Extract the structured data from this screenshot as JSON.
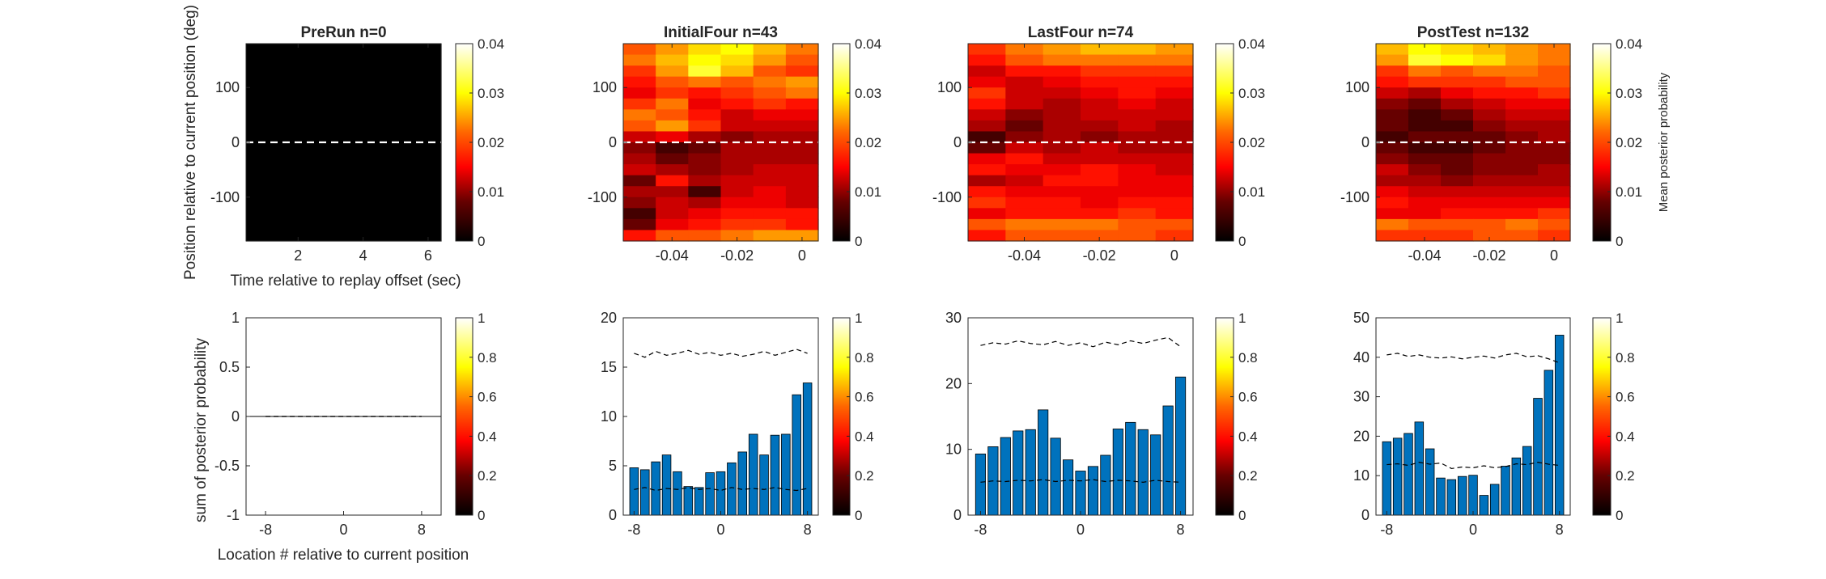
{
  "figure": {
    "ylabel_top": "Position relative to current position (deg)",
    "xlabel_top": "Time relative to replay offset (sec)",
    "ylabel_bottom": "sum of posterior probability",
    "xlabel_bottom": "Location # relative to current position",
    "colorbar_label": "Mean posterior probability"
  },
  "chart_data": [
    {
      "type": "heatmap",
      "panel": "top-1",
      "title": "PreRun n=0",
      "xlim": [
        0.4,
        6.4
      ],
      "ylim": [
        -180,
        180
      ],
      "xticks": [
        2,
        4,
        6
      ],
      "xticklabels": [
        "2",
        "4",
        "6"
      ],
      "yticks": [
        100,
        0,
        -100
      ],
      "yticklabels": [
        "100",
        "0",
        "-100"
      ],
      "clim": [
        0,
        0.04
      ],
      "colorbar_ticks": [
        0,
        0.01,
        0.02,
        0.03,
        0.04
      ],
      "colorbar_ticklabels": [
        "0",
        "0.01",
        "0.02",
        "0.03",
        "0.04"
      ],
      "reference_line_y": 0,
      "columns": 1,
      "rows": 1,
      "values": [
        [
          0
        ]
      ]
    },
    {
      "type": "heatmap",
      "panel": "top-2",
      "title": "InitialFour n=43",
      "xlim": [
        -0.055,
        0.005
      ],
      "ylim": [
        -180,
        180
      ],
      "xticks": [
        -0.04,
        -0.02,
        0
      ],
      "xticklabels": [
        "-0.04",
        "-0.02",
        "0"
      ],
      "yticks": [
        100,
        0,
        -100
      ],
      "yticklabels": [
        "100",
        "0",
        "-100"
      ],
      "clim": [
        0,
        0.04
      ],
      "colorbar_ticks": [
        0,
        0.01,
        0.02,
        0.03,
        0.04
      ],
      "colorbar_ticklabels": [
        "0",
        "0.01",
        "0.02",
        "0.03",
        "0.04"
      ],
      "reference_line_y": 0,
      "columns": 6,
      "rows": 18,
      "values": [
        [
          0.02,
          0.024,
          0.028,
          0.03,
          0.026,
          0.022
        ],
        [
          0.022,
          0.026,
          0.03,
          0.028,
          0.024,
          0.02
        ],
        [
          0.018,
          0.024,
          0.032,
          0.026,
          0.02,
          0.018
        ],
        [
          0.016,
          0.02,
          0.022,
          0.02,
          0.022,
          0.024
        ],
        [
          0.014,
          0.018,
          0.016,
          0.018,
          0.02,
          0.022
        ],
        [
          0.018,
          0.022,
          0.014,
          0.016,
          0.018,
          0.016
        ],
        [
          0.022,
          0.02,
          0.016,
          0.012,
          0.014,
          0.014
        ],
        [
          0.02,
          0.024,
          0.018,
          0.012,
          0.012,
          0.012
        ],
        [
          0.012,
          0.014,
          0.01,
          0.008,
          0.01,
          0.01
        ],
        [
          0.008,
          0.004,
          0.006,
          0.01,
          0.01,
          0.01
        ],
        [
          0.01,
          0.006,
          0.008,
          0.01,
          0.01,
          0.01
        ],
        [
          0.012,
          0.01,
          0.008,
          0.01,
          0.012,
          0.012
        ],
        [
          0.006,
          0.016,
          0.01,
          0.012,
          0.012,
          0.012
        ],
        [
          0.01,
          0.01,
          0.004,
          0.012,
          0.014,
          0.012
        ],
        [
          0.008,
          0.012,
          0.01,
          0.014,
          0.014,
          0.012
        ],
        [
          0.004,
          0.012,
          0.014,
          0.016,
          0.016,
          0.016
        ],
        [
          0.006,
          0.014,
          0.016,
          0.018,
          0.018,
          0.016
        ],
        [
          0.016,
          0.02,
          0.02,
          0.022,
          0.024,
          0.024
        ]
      ]
    },
    {
      "type": "heatmap",
      "panel": "top-3",
      "title": "LastFour n=74",
      "xlim": [
        -0.055,
        0.005
      ],
      "ylim": [
        -180,
        180
      ],
      "xticks": [
        -0.04,
        -0.02,
        0
      ],
      "xticklabels": [
        "-0.04",
        "-0.02",
        "0"
      ],
      "yticks": [
        100,
        0,
        -100
      ],
      "yticklabels": [
        "100",
        "0",
        "-100"
      ],
      "clim": [
        0,
        0.04
      ],
      "colorbar_ticks": [
        0,
        0.01,
        0.02,
        0.03,
        0.04
      ],
      "colorbar_ticklabels": [
        "0",
        "0.01",
        "0.02",
        "0.03",
        "0.04"
      ],
      "reference_line_y": 0,
      "columns": 6,
      "rows": 18,
      "values": [
        [
          0.018,
          0.022,
          0.024,
          0.026,
          0.026,
          0.024
        ],
        [
          0.016,
          0.02,
          0.022,
          0.022,
          0.022,
          0.022
        ],
        [
          0.012,
          0.016,
          0.016,
          0.018,
          0.018,
          0.018
        ],
        [
          0.014,
          0.012,
          0.014,
          0.016,
          0.016,
          0.016
        ],
        [
          0.018,
          0.012,
          0.012,
          0.014,
          0.016,
          0.014
        ],
        [
          0.016,
          0.012,
          0.01,
          0.012,
          0.014,
          0.012
        ],
        [
          0.012,
          0.008,
          0.01,
          0.012,
          0.012,
          0.012
        ],
        [
          0.01,
          0.006,
          0.01,
          0.01,
          0.012,
          0.01
        ],
        [
          0.004,
          0.008,
          0.01,
          0.008,
          0.01,
          0.01
        ],
        [
          0.006,
          0.012,
          0.01,
          0.012,
          0.01,
          0.01
        ],
        [
          0.014,
          0.016,
          0.012,
          0.012,
          0.012,
          0.012
        ],
        [
          0.016,
          0.014,
          0.014,
          0.016,
          0.014,
          0.012
        ],
        [
          0.01,
          0.012,
          0.016,
          0.016,
          0.014,
          0.014
        ],
        [
          0.016,
          0.014,
          0.014,
          0.014,
          0.014,
          0.014
        ],
        [
          0.018,
          0.016,
          0.016,
          0.014,
          0.016,
          0.016
        ],
        [
          0.014,
          0.016,
          0.016,
          0.016,
          0.018,
          0.016
        ],
        [
          0.02,
          0.022,
          0.022,
          0.022,
          0.02,
          0.02
        ],
        [
          0.016,
          0.02,
          0.02,
          0.02,
          0.02,
          0.018
        ]
      ]
    },
    {
      "type": "heatmap",
      "panel": "top-4",
      "title": "PostTest n=132",
      "xlim": [
        -0.055,
        0.005
      ],
      "ylim": [
        -180,
        180
      ],
      "xticks": [
        -0.04,
        -0.02,
        0
      ],
      "xticklabels": [
        "-0.04",
        "-0.02",
        "0"
      ],
      "yticks": [
        100,
        0,
        -100
      ],
      "yticklabels": [
        "100",
        "0",
        "-100"
      ],
      "clim": [
        0,
        0.04
      ],
      "colorbar_ticks": [
        0,
        0.01,
        0.02,
        0.03,
        0.04
      ],
      "colorbar_ticklabels": [
        "0",
        "0.01",
        "0.02",
        "0.03",
        "0.04"
      ],
      "reference_line_y": 0,
      "columns": 6,
      "rows": 18,
      "values": [
        [
          0.026,
          0.03,
          0.028,
          0.026,
          0.024,
          0.022
        ],
        [
          0.024,
          0.032,
          0.03,
          0.028,
          0.024,
          0.022
        ],
        [
          0.018,
          0.022,
          0.02,
          0.022,
          0.022,
          0.02
        ],
        [
          0.016,
          0.018,
          0.018,
          0.018,
          0.02,
          0.02
        ],
        [
          0.012,
          0.01,
          0.014,
          0.016,
          0.016,
          0.018
        ],
        [
          0.008,
          0.006,
          0.01,
          0.012,
          0.014,
          0.014
        ],
        [
          0.006,
          0.004,
          0.006,
          0.01,
          0.012,
          0.012
        ],
        [
          0.006,
          0.004,
          0.004,
          0.008,
          0.01,
          0.01
        ],
        [
          0.004,
          0.006,
          0.006,
          0.006,
          0.008,
          0.01
        ],
        [
          0.006,
          0.004,
          0.004,
          0.006,
          0.008,
          0.008
        ],
        [
          0.008,
          0.006,
          0.006,
          0.008,
          0.008,
          0.008
        ],
        [
          0.012,
          0.008,
          0.006,
          0.008,
          0.008,
          0.01
        ],
        [
          0.01,
          0.01,
          0.008,
          0.01,
          0.01,
          0.01
        ],
        [
          0.014,
          0.012,
          0.012,
          0.012,
          0.012,
          0.012
        ],
        [
          0.016,
          0.014,
          0.014,
          0.014,
          0.014,
          0.014
        ],
        [
          0.014,
          0.014,
          0.016,
          0.016,
          0.016,
          0.018
        ],
        [
          0.022,
          0.02,
          0.02,
          0.02,
          0.022,
          0.02
        ],
        [
          0.018,
          0.018,
          0.018,
          0.02,
          0.02,
          0.018
        ]
      ]
    },
    {
      "type": "bar",
      "panel": "bottom-1",
      "title": "",
      "xlim": [
        -10,
        10
      ],
      "ylim": [
        -1,
        1
      ],
      "xticks": [
        -8,
        0,
        8
      ],
      "xticklabels": [
        "-8",
        "0",
        "8"
      ],
      "yticks": [
        1,
        0.5,
        0,
        -0.5,
        -1
      ],
      "yticklabels": [
        "1",
        "0.5",
        "0",
        "-0.5",
        "-1"
      ],
      "clim": [
        0,
        1
      ],
      "colorbar_ticks": [
        0,
        0.2,
        0.4,
        0.6,
        0.8,
        1
      ],
      "colorbar_ticklabels": [
        "0",
        "0.2",
        "0.4",
        "0.6",
        "0.8",
        "1"
      ],
      "x": [
        -8,
        -7,
        -6,
        -5,
        -4,
        -3,
        -2,
        -1,
        0,
        1,
        2,
        3,
        4,
        5,
        6,
        7,
        8
      ],
      "values": [
        0,
        0,
        0,
        0,
        0,
        0,
        0,
        0,
        0,
        0,
        0,
        0,
        0,
        0,
        0,
        0,
        0
      ],
      "dashed_upper": [
        0,
        0,
        0,
        0,
        0,
        0,
        0,
        0,
        0,
        0,
        0,
        0,
        0,
        0,
        0,
        0,
        0
      ],
      "dashed_lower": [
        0,
        0,
        0,
        0,
        0,
        0,
        0,
        0,
        0,
        0,
        0,
        0,
        0,
        0,
        0,
        0,
        0
      ]
    },
    {
      "type": "bar",
      "panel": "bottom-2",
      "title": "",
      "xlim": [
        -9,
        9
      ],
      "ylim": [
        0,
        20
      ],
      "xticks": [
        -8,
        0,
        8
      ],
      "xticklabels": [
        "-8",
        "0",
        "8"
      ],
      "yticks": [
        20,
        15,
        10,
        5,
        0
      ],
      "yticklabels": [
        "20",
        "15",
        "10",
        "5",
        "0"
      ],
      "clim": [
        0,
        1
      ],
      "colorbar_ticks": [
        0,
        0.2,
        0.4,
        0.6,
        0.8,
        1
      ],
      "colorbar_ticklabels": [
        "0",
        "0.2",
        "0.4",
        "0.6",
        "0.8",
        "1"
      ],
      "x": [
        -8,
        -7,
        -6,
        -5,
        -4,
        -3,
        -2,
        -1,
        0,
        1,
        2,
        3,
        4,
        5,
        6,
        7,
        8
      ],
      "values": [
        4.8,
        4.6,
        5.4,
        6.1,
        4.4,
        2.9,
        2.8,
        4.3,
        4.4,
        5.3,
        6.4,
        8.2,
        6.1,
        8.1,
        8.2,
        12.2,
        13.4
      ],
      "dashed_upper": [
        16.4,
        16.0,
        16.6,
        16.2,
        16.4,
        16.7,
        16.3,
        16.5,
        16.2,
        16.4,
        16.1,
        16.3,
        16.6,
        16.2,
        16.5,
        16.8,
        16.4
      ],
      "dashed_lower": [
        2.6,
        2.8,
        2.5,
        2.7,
        2.6,
        2.8,
        2.6,
        2.7,
        2.5,
        2.8,
        2.6,
        2.7,
        2.6,
        2.8,
        2.6,
        2.5,
        2.7
      ]
    },
    {
      "type": "bar",
      "panel": "bottom-3",
      "title": "",
      "xlim": [
        -9,
        9
      ],
      "ylim": [
        0,
        30
      ],
      "xticks": [
        -8,
        0,
        8
      ],
      "xticklabels": [
        "-8",
        "0",
        "8"
      ],
      "yticks": [
        30,
        20,
        10,
        0
      ],
      "yticklabels": [
        "30",
        "20",
        "10",
        "0"
      ],
      "clim": [
        0,
        1
      ],
      "colorbar_ticks": [
        0,
        0.2,
        0.4,
        0.6,
        0.8,
        1
      ],
      "colorbar_ticklabels": [
        "0",
        "0.2",
        "0.4",
        "0.6",
        "0.8",
        "1"
      ],
      "x": [
        -8,
        -7,
        -6,
        -5,
        -4,
        -3,
        -2,
        -1,
        0,
        1,
        2,
        3,
        4,
        5,
        6,
        7,
        8
      ],
      "values": [
        9.3,
        10.4,
        11.8,
        12.8,
        13.0,
        16.0,
        11.7,
        8.4,
        6.7,
        7.4,
        9.1,
        13.1,
        14.1,
        13.0,
        12.2,
        16.6,
        21.0
      ],
      "dashed_upper": [
        25.8,
        26.2,
        26.0,
        26.5,
        26.1,
        25.9,
        26.4,
        25.8,
        26.2,
        25.6,
        26.3,
        25.9,
        26.5,
        26.1,
        26.6,
        27.0,
        25.6
      ],
      "dashed_lower": [
        5.0,
        5.2,
        5.1,
        5.3,
        5.2,
        5.4,
        5.1,
        5.3,
        5.2,
        5.4,
        5.1,
        5.3,
        5.2,
        5.0,
        5.3,
        5.1,
        5.0
      ]
    },
    {
      "type": "bar",
      "panel": "bottom-4",
      "title": "",
      "xlim": [
        -9,
        9
      ],
      "ylim": [
        0,
        50
      ],
      "xticks": [
        -8,
        0,
        8
      ],
      "xticklabels": [
        "-8",
        "0",
        "8"
      ],
      "yticks": [
        50,
        40,
        30,
        20,
        10,
        0
      ],
      "yticklabels": [
        "50",
        "40",
        "30",
        "20",
        "10",
        "0"
      ],
      "clim": [
        0,
        1
      ],
      "colorbar_ticks": [
        0,
        0.2,
        0.4,
        0.6,
        0.8,
        1
      ],
      "colorbar_ticklabels": [
        "0",
        "0.2",
        "0.4",
        "0.6",
        "0.8",
        "1"
      ],
      "x": [
        -8,
        -7,
        -6,
        -5,
        -4,
        -3,
        -2,
        -1,
        0,
        1,
        2,
        3,
        4,
        5,
        6,
        7,
        8
      ],
      "values": [
        18.6,
        19.5,
        20.7,
        23.6,
        16.8,
        9.4,
        9.0,
        9.8,
        10.1,
        5.0,
        7.8,
        12.4,
        14.5,
        17.4,
        29.6,
        36.7,
        45.6
      ],
      "dashed_upper": [
        40.6,
        41.0,
        40.2,
        40.6,
        40.0,
        39.8,
        40.1,
        39.6,
        40.0,
        40.3,
        39.8,
        40.6,
        41.0,
        40.1,
        40.4,
        39.6,
        38.6
      ],
      "dashed_lower": [
        12.8,
        13.0,
        12.6,
        13.4,
        12.9,
        13.2,
        11.8,
        12.2,
        12.0,
        12.5,
        12.0,
        12.3,
        13.0,
        12.8,
        13.4,
        12.9,
        12.6
      ]
    }
  ]
}
